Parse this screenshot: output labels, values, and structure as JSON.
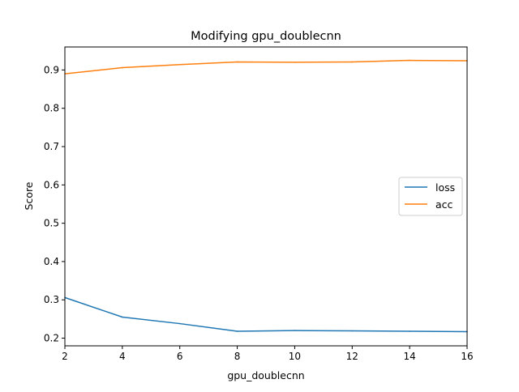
{
  "chart_data": {
    "type": "line",
    "title": "Modifying gpu_doublecnn",
    "xlabel": "gpu_doublecnn",
    "ylabel": "Score",
    "x": [
      2,
      4,
      6,
      8,
      10,
      12,
      14,
      16
    ],
    "xlim": [
      2,
      16
    ],
    "ylim": [
      0.18,
      0.96
    ],
    "xticks": [
      "2",
      "4",
      "6",
      "8",
      "10",
      "12",
      "14",
      "16"
    ],
    "yticks": [
      "0.2",
      "0.3",
      "0.4",
      "0.5",
      "0.6",
      "0.7",
      "0.8",
      "0.9"
    ],
    "grid": false,
    "legend_position": "center-right",
    "series": [
      {
        "name": "loss",
        "color": "#1f77b4",
        "values": [
          0.306,
          0.255,
          0.238,
          0.218,
          0.22,
          0.219,
          0.218,
          0.217
        ]
      },
      {
        "name": "acc",
        "color": "#ff7f0e",
        "values": [
          0.89,
          0.906,
          0.914,
          0.921,
          0.92,
          0.921,
          0.925,
          0.924
        ]
      }
    ]
  }
}
